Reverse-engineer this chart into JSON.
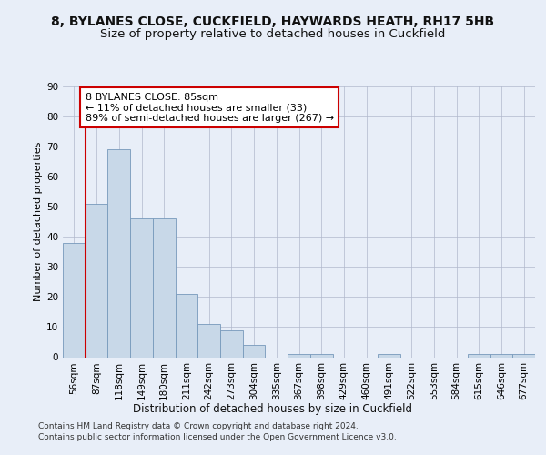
{
  "title1": "8, BYLANES CLOSE, CUCKFIELD, HAYWARDS HEATH, RH17 5HB",
  "title2": "Size of property relative to detached houses in Cuckfield",
  "xlabel": "Distribution of detached houses by size in Cuckfield",
  "ylabel": "Number of detached properties",
  "bar_labels": [
    "56sqm",
    "87sqm",
    "118sqm",
    "149sqm",
    "180sqm",
    "211sqm",
    "242sqm",
    "273sqm",
    "304sqm",
    "335sqm",
    "367sqm",
    "398sqm",
    "429sqm",
    "460sqm",
    "491sqm",
    "522sqm",
    "553sqm",
    "584sqm",
    "615sqm",
    "646sqm",
    "677sqm"
  ],
  "bar_values": [
    38,
    51,
    69,
    46,
    46,
    21,
    11,
    9,
    4,
    0,
    1,
    1,
    0,
    0,
    1,
    0,
    0,
    0,
    1,
    1,
    1
  ],
  "bar_color": "#c8d8e8",
  "bar_edge_color": "#7799bb",
  "vline_x_idx": 1,
  "vline_color": "#cc0000",
  "annotation_text": "8 BYLANES CLOSE: 85sqm\n← 11% of detached houses are smaller (33)\n89% of semi-detached houses are larger (267) →",
  "annotation_box_color": "#ffffff",
  "annotation_box_edge_color": "#cc0000",
  "ylim": [
    0,
    90
  ],
  "yticks": [
    0,
    10,
    20,
    30,
    40,
    50,
    60,
    70,
    80,
    90
  ],
  "background_color": "#e8eef8",
  "plot_background_color": "#e8eef8",
  "footer_line1": "Contains HM Land Registry data © Crown copyright and database right 2024.",
  "footer_line2": "Contains public sector information licensed under the Open Government Licence v3.0.",
  "title1_fontsize": 10,
  "title2_fontsize": 9.5,
  "xlabel_fontsize": 8.5,
  "ylabel_fontsize": 8,
  "tick_fontsize": 7.5,
  "annotation_fontsize": 8,
  "footer_fontsize": 6.5
}
